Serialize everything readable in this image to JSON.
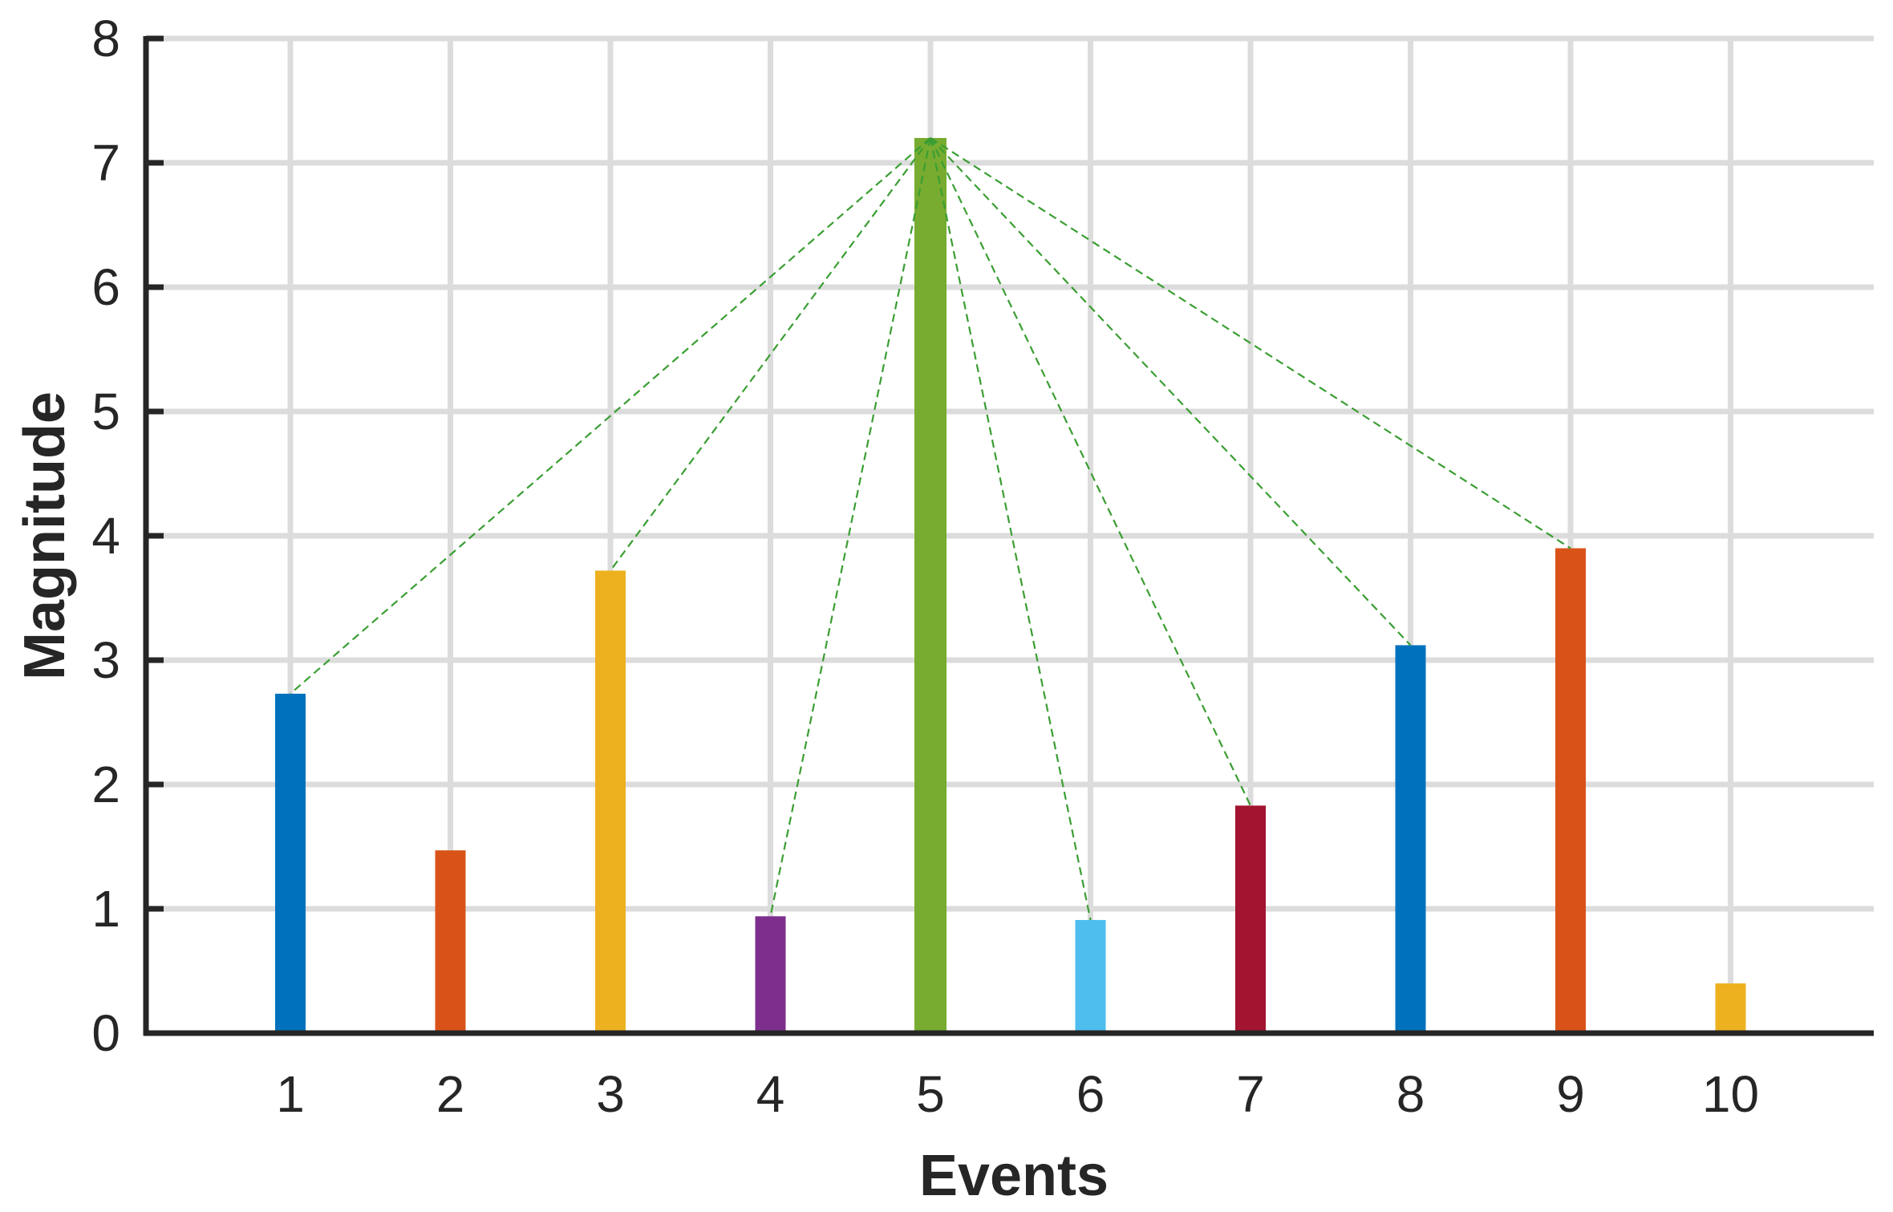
{
  "chart_data": {
    "type": "bar",
    "title": "",
    "xlabel": "Events",
    "ylabel": "Magnitude",
    "categories": [
      "1",
      "2",
      "3",
      "4",
      "5",
      "6",
      "7",
      "8",
      "9",
      "10"
    ],
    "values": [
      2.73,
      1.47,
      3.72,
      0.94,
      7.2,
      0.91,
      1.83,
      3.12,
      3.9,
      0.4
    ],
    "colors": [
      "#0072BD",
      "#D95319",
      "#EDB120",
      "#7E2F8E",
      "#77AC30",
      "#4DBEEE",
      "#A2142F",
      "#0072BD",
      "#D95319",
      "#EDB120"
    ],
    "ylim": [
      0,
      8
    ],
    "yticks": [
      "0",
      "1",
      "2",
      "3",
      "4",
      "5",
      "6",
      "7",
      "8"
    ],
    "grid": true,
    "highlight_index": 4,
    "connector_targets": [
      0,
      2,
      3,
      5,
      6,
      7,
      8
    ],
    "connector_color": "#3A9E32",
    "grid_color": "#DCDCDC",
    "axis_color": "#262626"
  }
}
